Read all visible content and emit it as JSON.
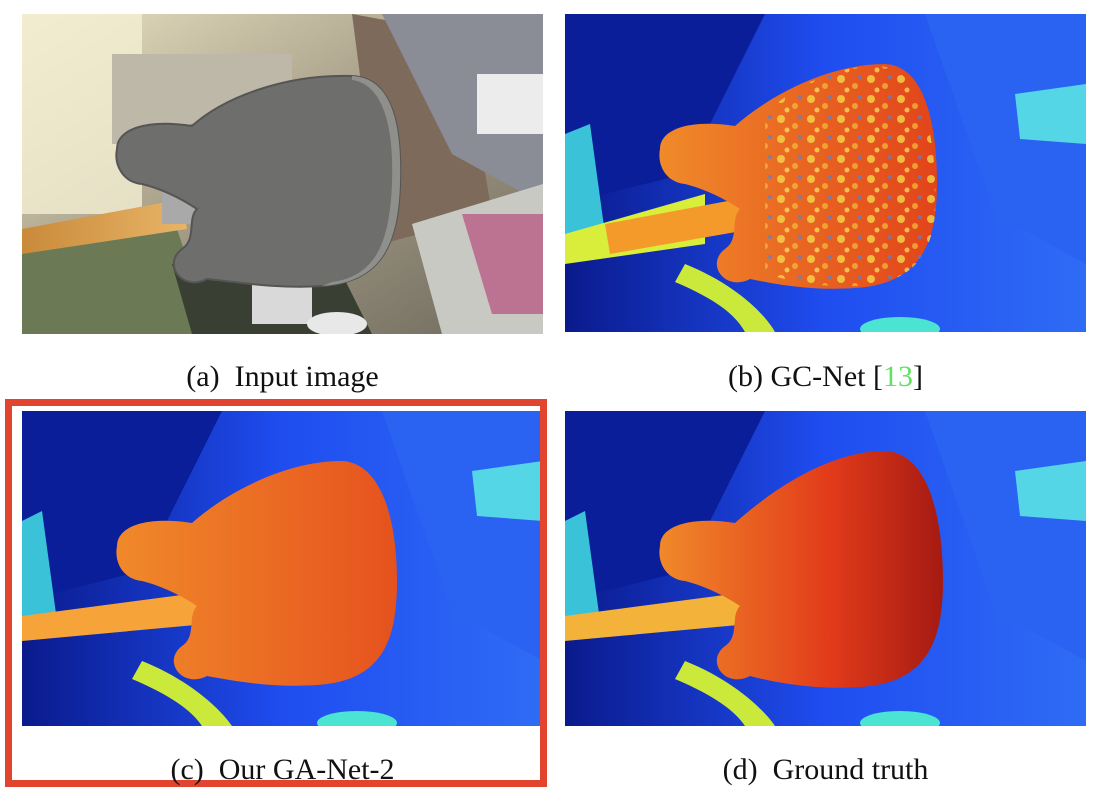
{
  "figure": {
    "panels": [
      {
        "id": "a",
        "tag": "(a)",
        "label": "Input image"
      },
      {
        "id": "b",
        "tag": "(b)",
        "label": "GC-Net [",
        "ref": "13",
        "ref_close": "]"
      },
      {
        "id": "c",
        "tag": "(c)",
        "label": "Our GA-Net-2",
        "highlighted": true
      },
      {
        "id": "d",
        "tag": "(d)",
        "label": "Ground truth"
      }
    ],
    "colors": {
      "highlight_border": "#e2452f",
      "citation": "#5ee35e",
      "disparity_far": "#0a1a8c",
      "disparity_mid": "#1f4df0",
      "disparity_near": "#e8501c"
    }
  }
}
